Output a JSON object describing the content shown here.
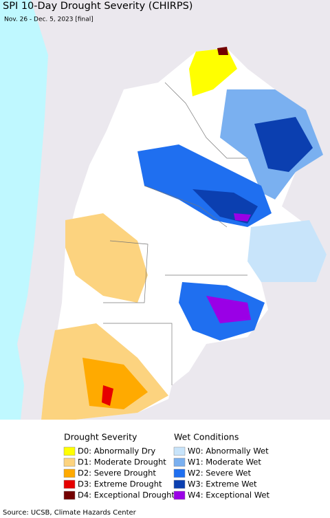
{
  "header": {
    "title": "SPI 10-Day Drought Severity (CHIRPS)",
    "subtitle": "Nov. 26 - Dec. 5, 2023 [final]"
  },
  "legend": [
    {
      "title": "Drought Severity",
      "items": [
        {
          "label": "D0: Abnormally Dry",
          "color": "#ffff00"
        },
        {
          "label": "D1: Moderate Drought",
          "color": "#fcd37f"
        },
        {
          "label": "D2: Severe Drought",
          "color": "#ffaa00"
        },
        {
          "label": "D3: Extreme Drought",
          "color": "#e60000"
        },
        {
          "label": "D4: Exceptional Drought",
          "color": "#730000"
        }
      ]
    },
    {
      "title": "Wet Conditions",
      "items": [
        {
          "label": "W0: Abnormally Wet",
          "color": "#c8e4fa"
        },
        {
          "label": "W1: Moderate Wet",
          "color": "#7ab0f0"
        },
        {
          "label": "W2: Severe Wet",
          "color": "#1f6ff0"
        },
        {
          "label": "W3: Extreme Wet",
          "color": "#0b3fb0"
        },
        {
          "label": "W4: Exceptional Wet",
          "color": "#9a00e6"
        }
      ]
    }
  ],
  "footer": {
    "source": "Source: UCSB, Climate Hazards Center"
  }
}
